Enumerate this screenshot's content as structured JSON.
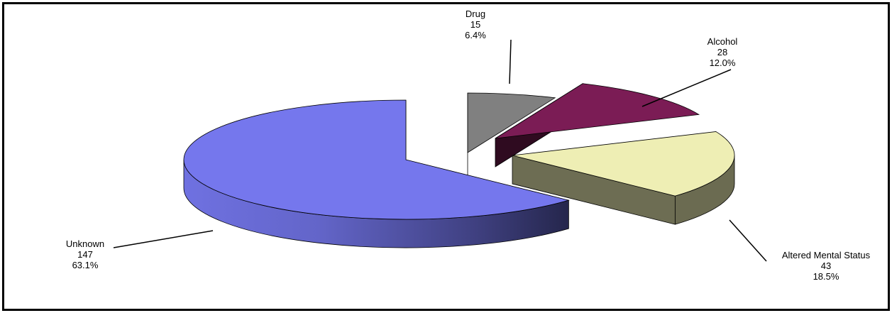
{
  "chart_data": {
    "type": "pie",
    "title": "",
    "three_d": true,
    "exploded": true,
    "legend": "none",
    "data_labels": "category, value, percent",
    "slices": [
      {
        "name": "Drug",
        "value": 15,
        "percent": "6.4%",
        "color": "#808080"
      },
      {
        "name": "Alcohol",
        "value": 28,
        "percent": "12.0%",
        "color": "#7b1c55"
      },
      {
        "name": "Altered Mental Status",
        "value": 43,
        "percent": "18.5%",
        "color": "#eeeeb4"
      },
      {
        "name": "Unknown",
        "value": 147,
        "percent": "63.1%",
        "color": "#7577ed"
      }
    ]
  }
}
